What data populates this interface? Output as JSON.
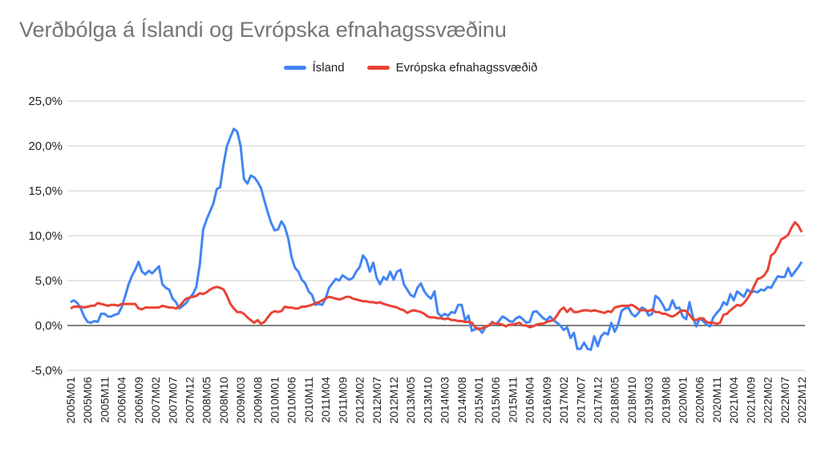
{
  "chart_data": {
    "type": "line",
    "title": "Verðbólga á Íslandi og Evrópska efnahagssvæðinu",
    "xlabel": "",
    "ylabel": "",
    "ylim": [
      -5,
      25
    ],
    "yticks": [
      -5,
      0,
      5,
      10,
      15,
      20,
      25
    ],
    "ytick_labels": [
      "-5,0%",
      "0,0%",
      "5,0%",
      "10,0%",
      "15,0%",
      "20,0%",
      "25,0%"
    ],
    "grid": true,
    "legend_position": "top-center",
    "x_start": "2005M01",
    "x_end": "2022M12",
    "x_tick_every_months": 5,
    "series": [
      {
        "name": "Ísland",
        "color": "#4285f4",
        "values": [
          2.6,
          2.8,
          2.5,
          1.9,
          1.0,
          0.4,
          0.3,
          0.5,
          0.4,
          1.3,
          1.3,
          1.0,
          1.0,
          1.2,
          1.3,
          2.0,
          3.2,
          4.5,
          5.5,
          6.2,
          7.1,
          6.0,
          5.7,
          6.1,
          5.8,
          6.2,
          6.6,
          4.6,
          4.2,
          4.0,
          3.0,
          2.6,
          1.9,
          2.2,
          2.5,
          3.1,
          3.5,
          4.3,
          6.8,
          10.7,
          11.8,
          12.7,
          13.6,
          15.2,
          15.4,
          18.0,
          20.0,
          21.0,
          21.9,
          21.6,
          20.0,
          16.3,
          15.8,
          16.7,
          16.5,
          16.0,
          15.3,
          13.9,
          12.6,
          11.4,
          10.6,
          10.7,
          11.6,
          11.0,
          9.7,
          7.6,
          6.4,
          6.0,
          5.1,
          4.7,
          3.8,
          3.4,
          2.3,
          2.4,
          2.3,
          3.0,
          4.2,
          4.7,
          5.2,
          5.0,
          5.6,
          5.3,
          5.1,
          5.3,
          6.0,
          6.5,
          7.8,
          7.3,
          6.0,
          7.0,
          5.3,
          4.6,
          5.4,
          5.1,
          6.0,
          5.1,
          6.0,
          6.2,
          4.6,
          4.0,
          3.4,
          3.2,
          4.2,
          4.7,
          3.8,
          3.3,
          3.0,
          3.8,
          1.4,
          1.0,
          1.3,
          1.1,
          1.5,
          1.4,
          2.3,
          2.3,
          0.6,
          1.1,
          -0.6,
          -0.4,
          -0.3,
          -0.8,
          -0.2,
          0.0,
          0.4,
          0.1,
          0.5,
          1.0,
          0.8,
          0.5,
          0.4,
          0.8,
          1.0,
          0.7,
          0.3,
          0.4,
          1.5,
          1.6,
          1.2,
          0.8,
          0.6,
          1.0,
          0.6,
          0.3,
          0.0,
          -0.5,
          -0.2,
          -1.4,
          -0.8,
          -2.6,
          -2.6,
          -1.9,
          -2.6,
          -2.7,
          -1.2,
          -2.3,
          -1.2,
          -0.8,
          -1.0,
          0.3,
          -0.7,
          0.1,
          1.6,
          1.9,
          2.0,
          1.3,
          1.0,
          1.4,
          2.0,
          1.8,
          1.1,
          1.3,
          3.3,
          3.0,
          2.4,
          1.7,
          1.8,
          2.8,
          1.9,
          2.0,
          1.0,
          0.7,
          2.6,
          0.9,
          -0.1,
          0.8,
          0.5,
          0.1,
          -0.1,
          0.9,
          1.4,
          1.8,
          2.6,
          2.3,
          3.5,
          2.8,
          3.8,
          3.5,
          3.2,
          4.0,
          3.7,
          3.8,
          3.7,
          4.0,
          3.9,
          4.3,
          4.2,
          4.9,
          5.5,
          5.4,
          5.4,
          6.4,
          5.5,
          6.0,
          6.5,
          7.1
        ]
      },
      {
        "name": "Evrópska efnahagssvæðið",
        "color": "#ea4335",
        "values": [
          1.9,
          2.1,
          2.1,
          2.1,
          2.0,
          2.1,
          2.2,
          2.2,
          2.5,
          2.4,
          2.3,
          2.2,
          2.3,
          2.3,
          2.2,
          2.4,
          2.4,
          2.4,
          2.4,
          2.4,
          1.9,
          1.8,
          2.0,
          2.0,
          2.0,
          2.0,
          2.0,
          2.2,
          2.1,
          2.0,
          2.0,
          1.9,
          2.1,
          2.6,
          3.0,
          3.1,
          3.2,
          3.3,
          3.6,
          3.5,
          3.7,
          4.0,
          4.2,
          4.3,
          4.2,
          4.0,
          3.3,
          2.4,
          1.9,
          1.5,
          1.5,
          1.3,
          0.9,
          0.6,
          0.3,
          0.6,
          0.2,
          0.4,
          0.9,
          1.4,
          1.6,
          1.5,
          1.6,
          2.1,
          2.0,
          2.0,
          1.9,
          1.9,
          2.1,
          2.1,
          2.2,
          2.3,
          2.5,
          2.6,
          2.8,
          3.0,
          3.2,
          3.1,
          3.0,
          2.9,
          3.0,
          3.2,
          3.2,
          3.0,
          2.9,
          2.8,
          2.7,
          2.7,
          2.6,
          2.6,
          2.5,
          2.6,
          2.4,
          2.3,
          2.2,
          2.1,
          2.0,
          1.8,
          1.7,
          1.4,
          1.6,
          1.7,
          1.6,
          1.5,
          1.3,
          1.0,
          0.9,
          0.9,
          0.8,
          0.8,
          0.7,
          0.8,
          0.6,
          0.6,
          0.5,
          0.5,
          0.4,
          0.4,
          0.3,
          -0.2,
          -0.4,
          -0.3,
          -0.1,
          0.0,
          0.3,
          0.2,
          0.2,
          0.1,
          -0.1,
          0.1,
          0.1,
          0.2,
          0.3,
          0.0,
          0.0,
          -0.2,
          -0.1,
          0.1,
          0.2,
          0.2,
          0.4,
          0.5,
          0.6,
          1.1,
          1.7,
          2.0,
          1.5,
          1.9,
          1.5,
          1.5,
          1.6,
          1.7,
          1.7,
          1.6,
          1.7,
          1.6,
          1.5,
          1.4,
          1.6,
          1.5,
          2.0,
          2.1,
          2.2,
          2.2,
          2.2,
          2.3,
          2.1,
          1.8,
          1.7,
          1.7,
          1.6,
          1.8,
          1.5,
          1.5,
          1.3,
          1.3,
          1.1,
          1.0,
          1.2,
          1.5,
          1.7,
          1.6,
          1.2,
          0.7,
          0.6,
          0.8,
          0.8,
          0.4,
          0.3,
          0.3,
          0.2,
          0.3,
          1.2,
          1.3,
          1.7,
          2.0,
          2.3,
          2.2,
          2.5,
          3.0,
          3.6,
          4.4,
          5.2,
          5.3,
          5.6,
          6.2,
          7.8,
          8.1,
          8.8,
          9.6,
          9.8,
          10.1,
          10.9,
          11.5,
          11.1,
          10.4
        ]
      }
    ]
  }
}
